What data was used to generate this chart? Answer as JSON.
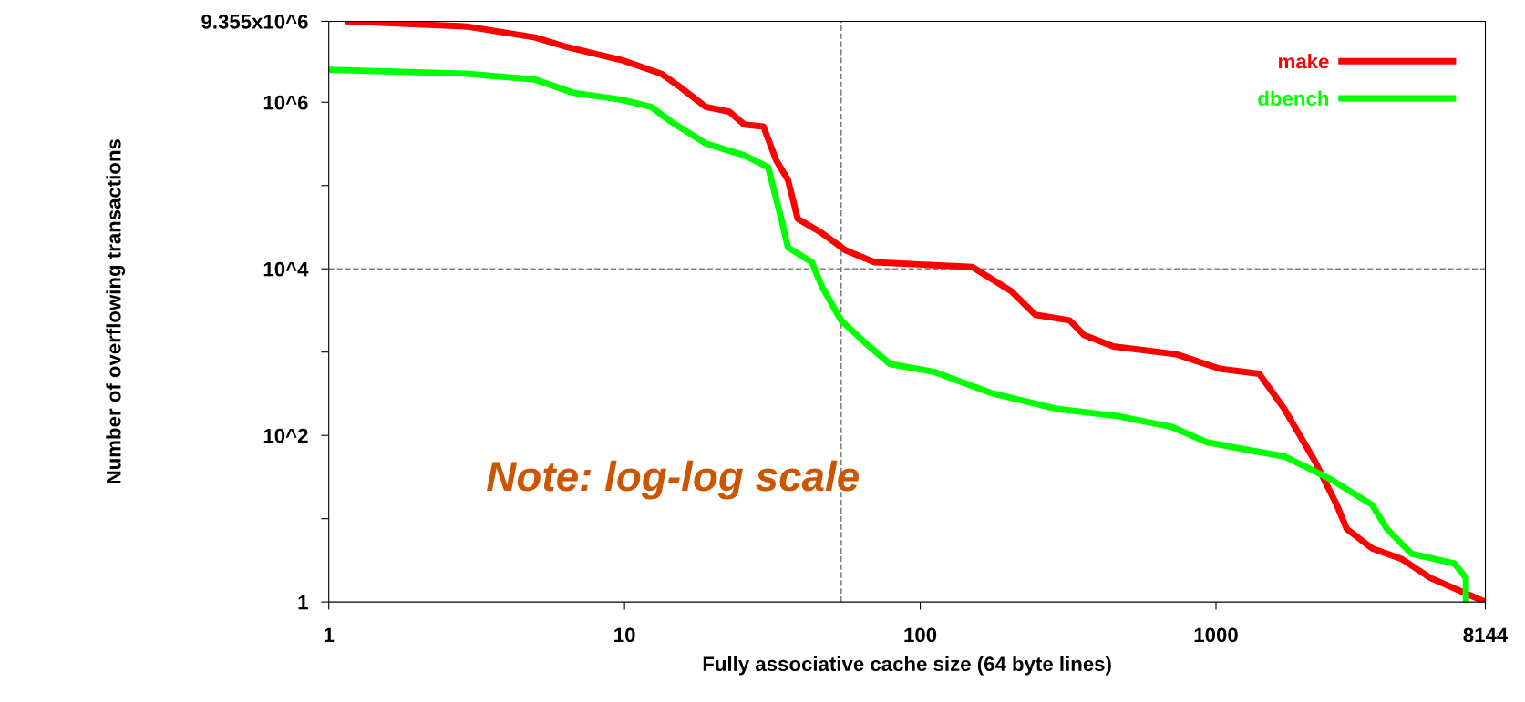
{
  "chart_data": {
    "type": "line",
    "xlabel": "Fully associative cache size (64 byte lines)",
    "ylabel": "Number of overflowing transactions",
    "log": "xy",
    "xlim": [
      1,
      8144
    ],
    "ylim": [
      1,
      9355000
    ],
    "xticks": [
      1,
      10,
      100,
      1000,
      8144
    ],
    "yticks": [
      1,
      {
        "value": 10,
        "label": null
      },
      {
        "value": 100,
        "label": "10^2"
      },
      {
        "value": 1000,
        "label": null
      },
      {
        "value": 10000,
        "label": "10^4"
      },
      {
        "value": 100000,
        "label": null
      },
      {
        "value": 1000000,
        "label": "10^6"
      },
      {
        "value": 9355000,
        "label": "9.355x10^6"
      }
    ],
    "grid": false,
    "legend": "top right",
    "line_style": "solid",
    "marker": "none",
    "ref_lines": [
      {
        "axis": "x",
        "value": 54,
        "color": "#808080",
        "line_style": "dashed"
      },
      {
        "axis": "y",
        "value": 10000,
        "color": "#808080",
        "line_style": "dashed"
      }
    ],
    "annotations": [
      "Note: log-log scale"
    ],
    "series": [
      {
        "name": "make",
        "color": "#ff0000",
        "x": [
          1.16,
          2.93,
          4.98,
          6.25,
          9.8,
          13.3,
          15.5,
          18.8,
          22.6,
          25.4,
          29.5,
          32.6,
          35.7,
          38.5,
          46.4,
          56,
          70,
          150,
          203,
          245,
          320,
          358,
          450,
          735,
          1030,
          1400,
          1700,
          2160,
          2560,
          2770,
          3370,
          4230,
          5300,
          8144
        ],
        "values": [
          9355000,
          8100000,
          6000000,
          4700000,
          3200000,
          2200000,
          1500000,
          880000,
          770000,
          540000,
          510000,
          200000,
          117000,
          40000,
          27000,
          16600,
          12000,
          10500,
          5400,
          2800,
          2400,
          1600,
          1170,
          940,
          630,
          550,
          210,
          49,
          14.7,
          7.5,
          4.4,
          3.3,
          1.95,
          1
        ]
      },
      {
        "name": "dbench",
        "color": "#00ff00",
        "x": [
          1,
          2.93,
          4.98,
          6.7,
          9.8,
          12.3,
          14.4,
          18.8,
          25.4,
          30.6,
          34.2,
          35.7,
          43,
          46.4,
          54,
          65,
          79,
          111,
          175,
          286,
          468,
          710,
          930,
          1250,
          1700,
          2160,
          2470,
          3370,
          3790,
          4580,
          6400,
          7000,
          7000
        ],
        "values": [
          2450000,
          2200000,
          1870000,
          1300000,
          1070000,
          880000,
          580000,
          320000,
          230000,
          166000,
          35000,
          18000,
          12000,
          6200,
          2400,
          1300,
          720,
          580,
          320,
          210,
          170,
          126,
          83,
          68,
          56,
          37,
          29,
          14.7,
          7.5,
          3.8,
          2.9,
          1.95,
          1
        ]
      }
    ]
  }
}
